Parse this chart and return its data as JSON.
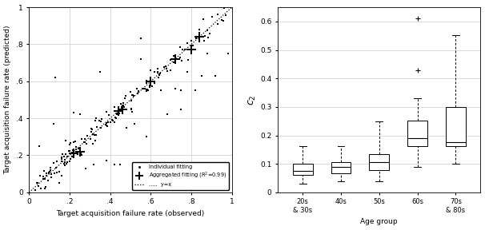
{
  "left_aggregated_points": {
    "x": [
      0.22,
      0.25,
      0.44,
      0.46,
      0.6,
      0.72,
      0.8,
      0.84
    ],
    "y": [
      0.21,
      0.22,
      0.44,
      0.45,
      0.6,
      0.72,
      0.77,
      0.84
    ]
  },
  "right_boxplot": {
    "groups": [
      "20s\n& 30s",
      "40s",
      "50s",
      "60s",
      "70s\n& 80s"
    ],
    "xlabel_center": "Age group",
    "data": {
      "20s_30s": {
        "whisker_low": 0.03,
        "q1": 0.062,
        "median": 0.075,
        "q3": 0.1,
        "whisker_high": 0.163,
        "outliers": []
      },
      "40s": {
        "whisker_low": 0.04,
        "q1": 0.068,
        "median": 0.09,
        "q3": 0.105,
        "whisker_high": 0.163,
        "outliers": []
      },
      "50s": {
        "whisker_low": 0.038,
        "q1": 0.078,
        "median": 0.106,
        "q3": 0.135,
        "whisker_high": 0.25,
        "outliers": []
      },
      "60s": {
        "whisker_low": 0.09,
        "q1": 0.163,
        "median": 0.19,
        "q3": 0.252,
        "whisker_high": 0.33,
        "outliers": [
          0.43,
          0.61
        ]
      },
      "70s_80s": {
        "whisker_low": 0.1,
        "q1": 0.162,
        "median": 0.175,
        "q3": 0.3,
        "whisker_high": 0.553,
        "outliers": []
      }
    }
  },
  "left_ylim": [
    0,
    1
  ],
  "left_xlim": [
    0,
    1
  ],
  "right_ylim": [
    0,
    0.65
  ],
  "right_yticks": [
    0,
    0.1,
    0.2,
    0.3,
    0.4,
    0.5,
    0.6
  ],
  "grid_color": "#cccccc",
  "left_xlabel": "Target acquisition failure rate (observed)",
  "left_ylabel": "Target acquisition failure rate (predicted)",
  "right_ylabel": "$c_2$",
  "right_xlabel": "Age group",
  "legend_individual": "Individual fitting",
  "legend_aggregated": "Aggregated fitting (R$^2$=0.99)",
  "legend_line": "y=x"
}
